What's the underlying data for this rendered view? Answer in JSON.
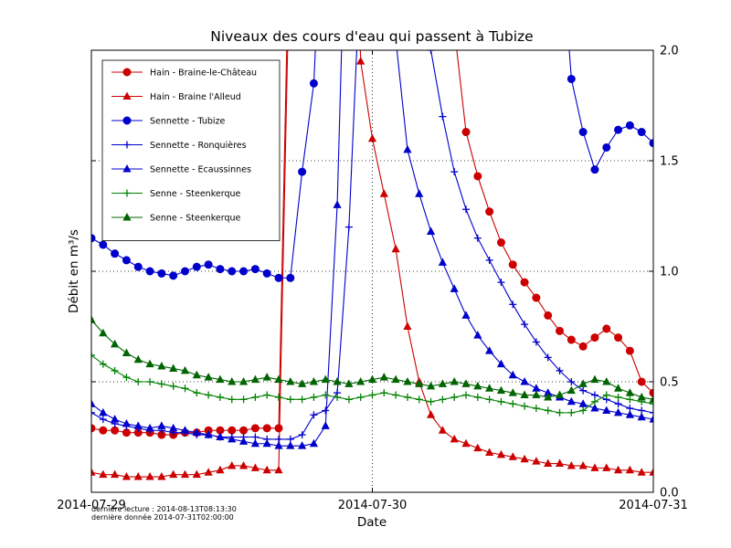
{
  "title": "Niveaux des cours d'eau qui passent à Tubize",
  "footer": {
    "line1": "dernière lecture : 2014-08-13T08:13:30",
    "line2": "dernière donnée  2014-07-31T02:00:00"
  },
  "chart_data": {
    "type": "line",
    "title": "Niveaux des cours d'eau qui passent à Tubize",
    "xlabel": "Date",
    "ylabel": "Débit en m³/s",
    "x_unit": "hours since 2014-07-29 00:00 (hourly samples)",
    "xlim": [
      0,
      48
    ],
    "ylim": [
      0,
      2
    ],
    "grid": "dotted",
    "legend_position": "upper left",
    "x_ticks": [
      {
        "t": 0,
        "label": "2014-07-29"
      },
      {
        "t": 24,
        "label": "2014-07-30"
      },
      {
        "t": 48,
        "label": "2014-07-31"
      }
    ],
    "y_ticks": [
      {
        "v": 0.0,
        "label": "0.0"
      },
      {
        "v": 0.5,
        "label": "0.5"
      },
      {
        "v": 1.0,
        "label": "1.0"
      },
      {
        "v": 1.5,
        "label": "1.5"
      },
      {
        "v": 2.0,
        "label": "2.0"
      }
    ],
    "clip_note": "values greater than 2.0 are off-scale (line leaves the top of the axes)",
    "series": [
      {
        "name": "Hain - Braine-le-Château",
        "color": "#cc0000",
        "marker": "circle",
        "values": [
          0.29,
          0.28,
          0.28,
          0.27,
          0.27,
          0.27,
          0.26,
          0.26,
          0.27,
          0.27,
          0.28,
          0.28,
          0.28,
          0.28,
          0.29,
          0.29,
          0.29,
          2.8,
          4.0,
          4.5,
          4.5,
          4.5,
          4.5,
          4.5,
          4.5,
          4.5,
          4.5,
          4.5,
          4.2,
          3.5,
          2.6,
          2.1,
          1.63,
          1.43,
          1.27,
          1.13,
          1.03,
          0.95,
          0.88,
          0.8,
          0.73,
          0.69,
          0.66,
          0.7,
          0.74,
          0.7,
          0.64,
          0.5,
          0.45
        ]
      },
      {
        "name": "Hain - Braine l'Alleud",
        "color": "#cc0000",
        "marker": "triangle",
        "values": [
          0.09,
          0.08,
          0.08,
          0.07,
          0.07,
          0.07,
          0.07,
          0.08,
          0.08,
          0.08,
          0.09,
          0.1,
          0.12,
          0.12,
          0.11,
          0.1,
          0.1,
          2.6,
          4.0,
          4.5,
          4.5,
          4.5,
          4.0,
          1.95,
          1.6,
          1.35,
          1.1,
          0.75,
          0.5,
          0.35,
          0.28,
          0.24,
          0.22,
          0.2,
          0.18,
          0.17,
          0.16,
          0.15,
          0.14,
          0.13,
          0.13,
          0.12,
          0.12,
          0.11,
          0.11,
          0.1,
          0.1,
          0.09,
          0.09
        ]
      },
      {
        "name": "Sennette - Tubize",
        "color": "#0000cc",
        "marker": "circle",
        "values": [
          1.15,
          1.12,
          1.08,
          1.05,
          1.02,
          1.0,
          0.99,
          0.98,
          1.0,
          1.02,
          1.03,
          1.01,
          1.0,
          1.0,
          1.01,
          0.99,
          0.97,
          0.97,
          1.45,
          1.85,
          3.0,
          4.0,
          4.0,
          4.0,
          4.0,
          4.0,
          4.0,
          4.0,
          4.0,
          4.0,
          4.0,
          4.0,
          4.0,
          4.0,
          4.0,
          4.0,
          4.0,
          4.0,
          3.8,
          3.2,
          2.6,
          1.87,
          1.63,
          1.46,
          1.56,
          1.64,
          1.66,
          1.63,
          1.58
        ]
      },
      {
        "name": "Sennette - Ronquières",
        "color": "#0000cc",
        "marker": "plus",
        "values": [
          0.36,
          0.33,
          0.31,
          0.3,
          0.29,
          0.28,
          0.28,
          0.27,
          0.27,
          0.26,
          0.26,
          0.25,
          0.25,
          0.25,
          0.25,
          0.24,
          0.24,
          0.24,
          0.26,
          0.35,
          0.37,
          0.45,
          1.2,
          2.4,
          3.2,
          3.4,
          3.2,
          2.9,
          2.5,
          2.0,
          1.7,
          1.45,
          1.28,
          1.15,
          1.05,
          0.95,
          0.85,
          0.76,
          0.68,
          0.61,
          0.55,
          0.5,
          0.46,
          0.44,
          0.42,
          0.4,
          0.38,
          0.37,
          0.36
        ]
      },
      {
        "name": "Sennette - Ecaussinnes",
        "color": "#0000cc",
        "marker": "triangle",
        "values": [
          0.4,
          0.36,
          0.33,
          0.31,
          0.3,
          0.29,
          0.3,
          0.29,
          0.28,
          0.27,
          0.26,
          0.25,
          0.24,
          0.23,
          0.22,
          0.22,
          0.21,
          0.21,
          0.21,
          0.22,
          0.3,
          1.3,
          3.2,
          4.0,
          4.0,
          3.2,
          2.05,
          1.55,
          1.35,
          1.18,
          1.04,
          0.92,
          0.8,
          0.71,
          0.64,
          0.58,
          0.53,
          0.5,
          0.47,
          0.45,
          0.43,
          0.41,
          0.4,
          0.38,
          0.37,
          0.36,
          0.35,
          0.34,
          0.33
        ]
      },
      {
        "name": "Senne - Steenkerque",
        "color": "#008000",
        "marker": "plus",
        "values": [
          0.62,
          0.58,
          0.55,
          0.52,
          0.5,
          0.5,
          0.49,
          0.48,
          0.47,
          0.45,
          0.44,
          0.43,
          0.42,
          0.42,
          0.43,
          0.44,
          0.43,
          0.42,
          0.42,
          0.43,
          0.44,
          0.43,
          0.42,
          0.43,
          0.44,
          0.45,
          0.44,
          0.43,
          0.42,
          0.41,
          0.42,
          0.43,
          0.44,
          0.43,
          0.42,
          0.41,
          0.4,
          0.39,
          0.38,
          0.37,
          0.36,
          0.36,
          0.37,
          0.41,
          0.44,
          0.43,
          0.42,
          0.41,
          0.4
        ]
      },
      {
        "name": "Senne - Steenkerque",
        "color": "#006400",
        "marker": "triangle",
        "values": [
          0.78,
          0.72,
          0.67,
          0.63,
          0.6,
          0.58,
          0.57,
          0.56,
          0.55,
          0.53,
          0.52,
          0.51,
          0.5,
          0.5,
          0.51,
          0.52,
          0.51,
          0.5,
          0.49,
          0.5,
          0.51,
          0.5,
          0.49,
          0.5,
          0.51,
          0.52,
          0.51,
          0.5,
          0.49,
          0.48,
          0.49,
          0.5,
          0.49,
          0.48,
          0.47,
          0.46,
          0.45,
          0.44,
          0.44,
          0.43,
          0.44,
          0.46,
          0.49,
          0.51,
          0.5,
          0.47,
          0.45,
          0.43,
          0.42
        ]
      }
    ]
  }
}
